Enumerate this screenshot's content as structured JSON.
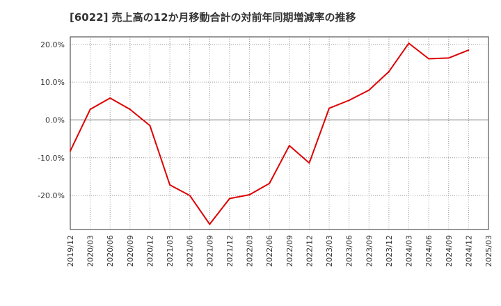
{
  "chart_data": {
    "type": "line",
    "title": "[6022]  売上高の12か月移動合計の対前年同期増減率の推移",
    "xlabel": "",
    "ylabel": "",
    "ylim": [
      -29,
      22
    ],
    "grid": true,
    "yticks": [
      20,
      10,
      0,
      -10,
      -20
    ],
    "ytick_labels": [
      "20.0%",
      "10.0%",
      "0.0%",
      "-10.0%",
      "-20.0%"
    ],
    "xticks": [
      "2019/12",
      "2020/03",
      "2020/06",
      "2020/09",
      "2020/12",
      "2021/03",
      "2021/06",
      "2021/09",
      "2021/12",
      "2022/03",
      "2022/06",
      "2022/09",
      "2022/12",
      "2023/03",
      "2023/06",
      "2023/09",
      "2023/12",
      "2024/03",
      "2024/06",
      "2024/09",
      "2024/12",
      "2025/03"
    ],
    "series": [
      {
        "name": "増減率",
        "color": "#dd0000",
        "x": [
          "2019/12",
          "2020/03",
          "2020/06",
          "2020/09",
          "2020/12",
          "2021/03",
          "2021/06",
          "2021/09",
          "2021/12",
          "2022/03",
          "2022/06",
          "2022/09",
          "2022/12",
          "2023/03",
          "2023/06",
          "2023/09",
          "2023/12",
          "2024/03",
          "2024/06",
          "2024/09",
          "2024/12"
        ],
        "values": [
          -8.2,
          2.8,
          5.8,
          2.8,
          -1.5,
          -17.2,
          -20.0,
          -27.6,
          -20.8,
          -19.8,
          -16.8,
          -6.8,
          -11.4,
          3.1,
          5.2,
          7.9,
          12.8,
          20.3,
          16.2,
          16.4,
          18.5
        ]
      }
    ]
  }
}
